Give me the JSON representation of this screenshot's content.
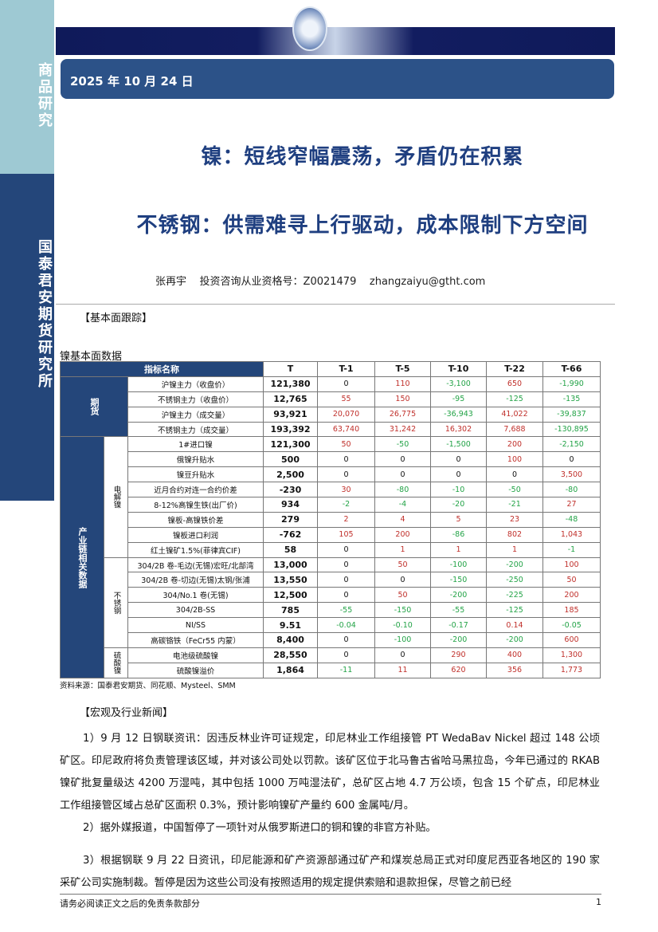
{
  "sidebar": {
    "top": "商品研究",
    "bottom": "国泰君安期货研究所"
  },
  "header": {
    "date": "2025 年 10 月 24 日"
  },
  "titles": [
    "镍：短线窄幅震荡，矛盾仍在积累",
    "不锈钢：供需难寻上行驱动，成本限制下方空间"
  ],
  "author": {
    "name": "张再宇",
    "license": "投资咨询从业资格号：Z0021479",
    "email": "zhangzaiyu@gtht.com"
  },
  "section1": "【基本面跟踪】",
  "table_title": "镍基本面数据",
  "table": {
    "headers": [
      "指标名称",
      "T",
      "T-1",
      "T-5",
      "T-10",
      "T-22",
      "T-66"
    ],
    "groups": [
      {
        "name": "期货",
        "subgroups": [
          {
            "name": "",
            "rows": [
              [
                "沪镍主力（收盘价）",
                "121,380",
                "0",
                "110",
                "-3,100",
                "650",
                "-1,990"
              ],
              [
                "不锈钢主力（收盘价）",
                "12,765",
                "55",
                "150",
                "-95",
                "-125",
                "-135"
              ],
              [
                "沪镍主力（成交量）",
                "93,921",
                "20,070",
                "26,775",
                "-36,943",
                "41,022",
                "-39,837"
              ],
              [
                "不锈钢主力（成交量）",
                "193,392",
                "63,740",
                "31,242",
                "16,302",
                "7,688",
                "-130,895"
              ]
            ]
          }
        ]
      },
      {
        "name": "产业链相关数据",
        "subgroups": [
          {
            "name": "电解镍",
            "rows": [
              [
                "1#进口镍",
                "121,300",
                "50",
                "-50",
                "-1,500",
                "200",
                "-2,150"
              ],
              [
                "俄镍升贴水",
                "500",
                "0",
                "0",
                "0",
                "100",
                "0"
              ],
              [
                "镍豆升贴水",
                "2,500",
                "0",
                "0",
                "0",
                "0",
                "3,500"
              ],
              [
                "近月合约对连一合约价差",
                "-230",
                "30",
                "-80",
                "-10",
                "-50",
                "-80"
              ],
              [
                "8-12%高镍生铁(出厂价)",
                "934",
                "-2",
                "-4",
                "-20",
                "-21",
                "27"
              ],
              [
                "镍板-高镍铁价差",
                "279",
                "2",
                "4",
                "5",
                "23",
                "-48"
              ],
              [
                "镍板进口利润",
                "-762",
                "105",
                "200",
                "-86",
                "802",
                "1,043"
              ],
              [
                "红土镍矿1.5%(菲律宾CIF)",
                "58",
                "0",
                "1",
                "1",
                "1",
                "-1"
              ]
            ]
          },
          {
            "name": "不锈钢",
            "rows": [
              [
                "304/2B 卷-毛边(无锡)宏旺/北部湾",
                "13,000",
                "0",
                "50",
                "-100",
                "-200",
                "100"
              ],
              [
                "304/2B 卷-切边(无锡)太钢/张浦",
                "13,550",
                "0",
                "0",
                "-150",
                "-250",
                "50"
              ],
              [
                "304/No.1 卷(无锡)",
                "12,500",
                "0",
                "50",
                "-200",
                "-225",
                "200"
              ],
              [
                "304/2B-SS",
                "785",
                "-55",
                "-150",
                "-55",
                "-125",
                "185"
              ],
              [
                "NI/SS",
                "9.51",
                "-0.04",
                "-0.10",
                "-0.17",
                "0.14",
                "-0.05"
              ],
              [
                "高碳铬铁（FeCr55 内蒙）",
                "8,400",
                "0",
                "-100",
                "-200",
                "-200",
                "600"
              ]
            ]
          },
          {
            "name": "硫酸镍",
            "rows": [
              [
                "电池级硫酸镍",
                "28,550",
                "0",
                "0",
                "290",
                "400",
                "1,300"
              ],
              [
                "硫酸镍溢价",
                "1,864",
                "-11",
                "11",
                "620",
                "356",
                "1,773"
              ]
            ]
          }
        ]
      }
    ]
  },
  "source": "资料来源：国泰君安期货、同花顺、Mysteel、SMM",
  "section2": "【宏观及行业新闻】",
  "news": [
    "1）9 月 12 日钢联资讯：因违反林业许可证规定，印尼林业工作组接管 PT WedaBav Nickel 超过 148 公顷矿区。印尼政府将负责管理该区域，并对该公司处以罚款。该矿区位于北马鲁古省哈马黑拉岛，今年已通过的 RKAB 镍矿批复量级达 4200 万湿吨，其中包括 1000 万吨湿法矿，总矿区占地 4.7 万公顷，包含 15 个矿点，印尼林业工作组接管区域占总矿区面积 0.3%，预计影响镍矿产量约 600 金属吨/月。",
    "2）据外媒报道，中国暂停了一项针对从俄罗斯进口的铜和镍的非官方补贴。",
    "3）根据钢联 9 月 22 日资讯，印尼能源和矿产资源部通过矿产和煤炭总局正式对印度尼西亚各地区的 190 家采矿公司实施制裁。暂停是因为这些公司没有按照适用的规定提供索赔和退款担保，尽管之前已经"
  ],
  "footer": {
    "disclaimer": "请务必阅读正文之后的免责条款部分",
    "page": "1"
  },
  "colors": {
    "navy": "#24467a",
    "positive": "#c0302b",
    "negative": "#23a347"
  }
}
